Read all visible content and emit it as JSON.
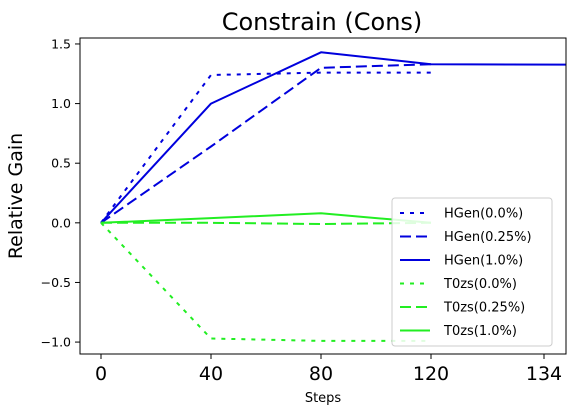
{
  "chart_data": {
    "type": "line",
    "title": "Constrain (Cons)",
    "xlabel": "Steps",
    "ylabel": "Relative Gain",
    "x_ticks": [
      0,
      40,
      80,
      120,
      134
    ],
    "x_tick_labels": [
      "0",
      "40",
      "80",
      "120",
      "134"
    ],
    "y_ticks": [
      -1.0,
      -0.5,
      0.0,
      0.5,
      1.0,
      1.5
    ],
    "y_tick_labels": [
      "−1.0",
      "−0.5",
      "0.0",
      "0.5",
      "1.0",
      "1.5"
    ],
    "xlim": [
      -7,
      141
    ],
    "ylim": [
      -1.1,
      1.55
    ],
    "grid": false,
    "legend_position": "right",
    "series": [
      {
        "name": "HGen(0.0%)",
        "color": "#0000dd",
        "dash": "dotted",
        "x": [
          0,
          40,
          80,
          120
        ],
        "y": [
          0.0,
          1.24,
          1.26,
          1.26
        ]
      },
      {
        "name": "HGen(0.25%)",
        "color": "#0000dd",
        "dash": "dashed",
        "x": [
          0,
          40,
          80,
          120
        ],
        "y": [
          0.0,
          0.64,
          1.3,
          1.33
        ]
      },
      {
        "name": "HGen(1.0%)",
        "color": "#0000dd",
        "dash": "solid",
        "x": [
          0,
          40,
          80,
          120,
          162
        ],
        "y": [
          0.0,
          1.0,
          1.43,
          1.33,
          1.32
        ]
      },
      {
        "name": "T0zs(0.0%)",
        "color": "#22ee22",
        "dash": "dotted",
        "x": [
          0,
          40,
          80,
          120
        ],
        "y": [
          0.0,
          -0.97,
          -0.99,
          -0.99
        ]
      },
      {
        "name": "T0zs(0.25%)",
        "color": "#22ee22",
        "dash": "dashed",
        "x": [
          0,
          40,
          80,
          120
        ],
        "y": [
          0.0,
          0.0,
          -0.01,
          0.0
        ]
      },
      {
        "name": "T0zs(1.0%)",
        "color": "#22ee22",
        "dash": "solid",
        "x": [
          0,
          40,
          80,
          120
        ],
        "y": [
          0.0,
          0.04,
          0.08,
          0.0
        ]
      }
    ]
  }
}
